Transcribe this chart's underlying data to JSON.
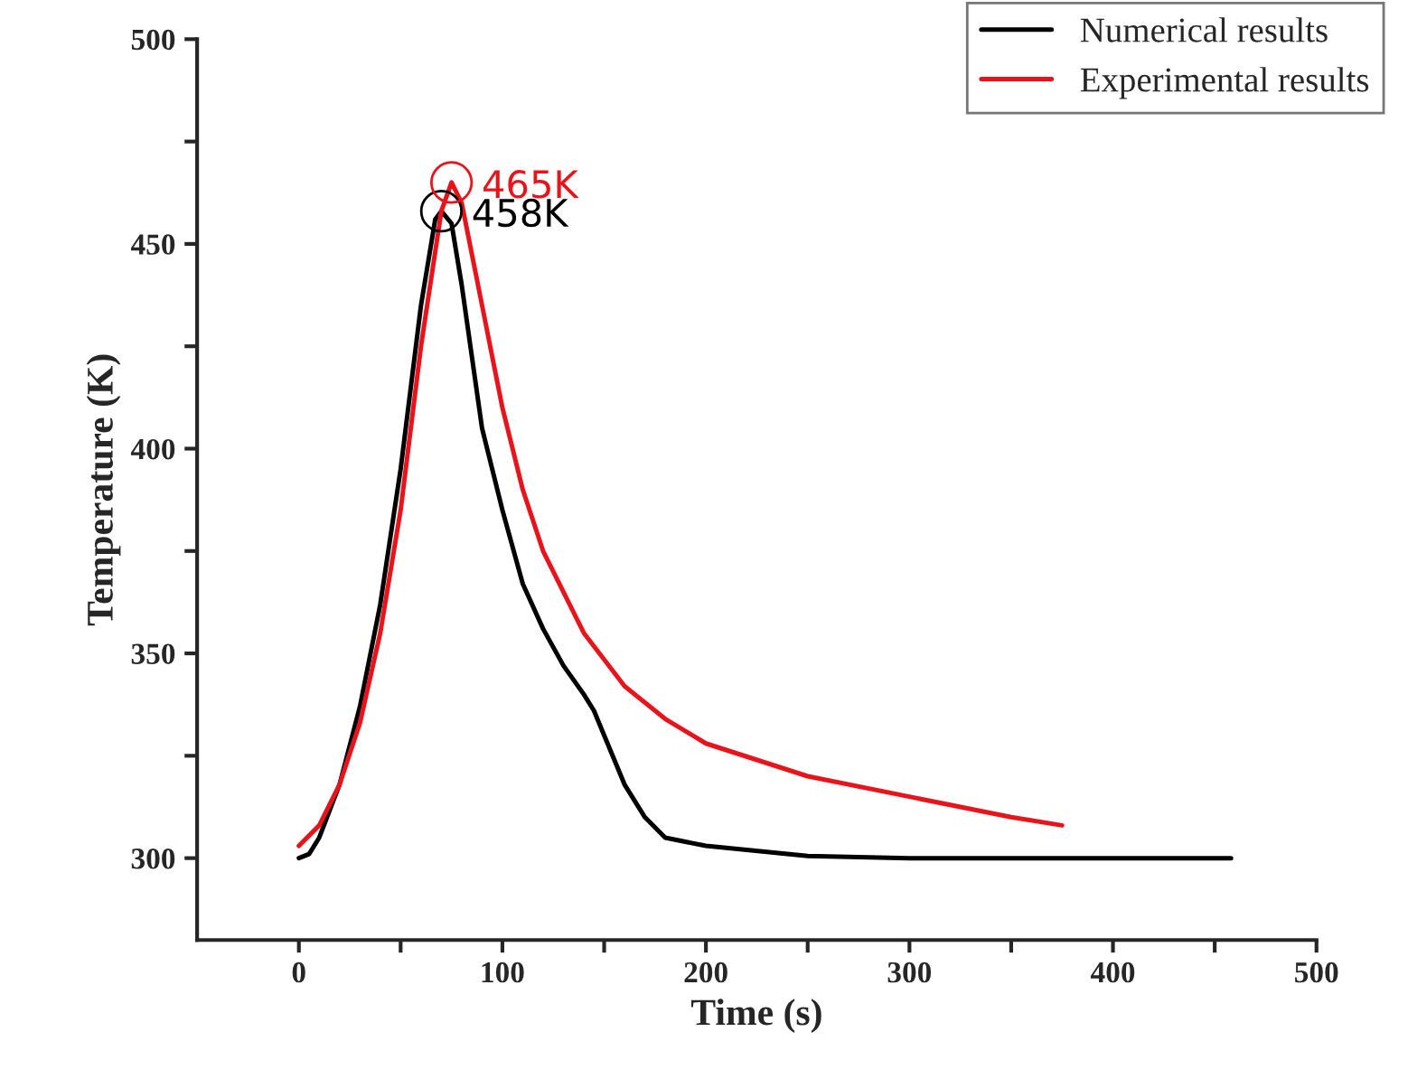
{
  "chart_data": {
    "type": "line",
    "xlabel": "Time (s)",
    "ylabel": "Temperature (K)",
    "xlim": [
      -50,
      500
    ],
    "ylim": [
      280,
      500
    ],
    "xticks": [
      0,
      {
        "value": 50,
        "label": null
      },
      100,
      {
        "value": 150,
        "label": null
      },
      200,
      {
        "value": 250,
        "label": null
      },
      300,
      {
        "value": 350,
        "label": null
      },
      400,
      {
        "value": 450,
        "label": null
      },
      500
    ],
    "yticks": [
      300,
      {
        "value": 325,
        "label": null
      },
      350,
      {
        "value": 375,
        "label": null
      },
      400,
      {
        "value": 425,
        "label": null
      },
      450,
      {
        "value": 475,
        "label": null
      },
      500
    ],
    "grid": false,
    "legend": "top right",
    "series": [
      {
        "name": "Numerical results",
        "color": "#000000",
        "x": [
          0,
          5,
          10,
          20,
          30,
          40,
          50,
          60,
          67,
          70,
          75,
          80,
          90,
          100,
          110,
          120,
          130,
          140,
          145,
          150,
          160,
          170,
          180,
          200,
          250,
          300,
          458
        ],
        "values": [
          300,
          301,
          305,
          318,
          337,
          362,
          395,
          435,
          456,
          458,
          455,
          440,
          405,
          385,
          367,
          356,
          347,
          340,
          336,
          330,
          318,
          310,
          305,
          303,
          300.5,
          300,
          300
        ]
      },
      {
        "name": "Experimental results",
        "color": "#e8141c",
        "x": [
          0,
          10,
          20,
          30,
          40,
          50,
          60,
          70,
          75,
          80,
          90,
          100,
          110,
          120,
          140,
          160,
          180,
          200,
          250,
          300,
          350,
          375
        ],
        "values": [
          303,
          308,
          318,
          333,
          355,
          385,
          425,
          458,
          465,
          460,
          435,
          410,
          390,
          375,
          355,
          342,
          334,
          328,
          320,
          315,
          310,
          308
        ]
      }
    ],
    "annotations": [
      {
        "text": "458K",
        "x": 70,
        "y": 458
      },
      {
        "text": "465K",
        "x": 75,
        "y": 465
      }
    ]
  }
}
